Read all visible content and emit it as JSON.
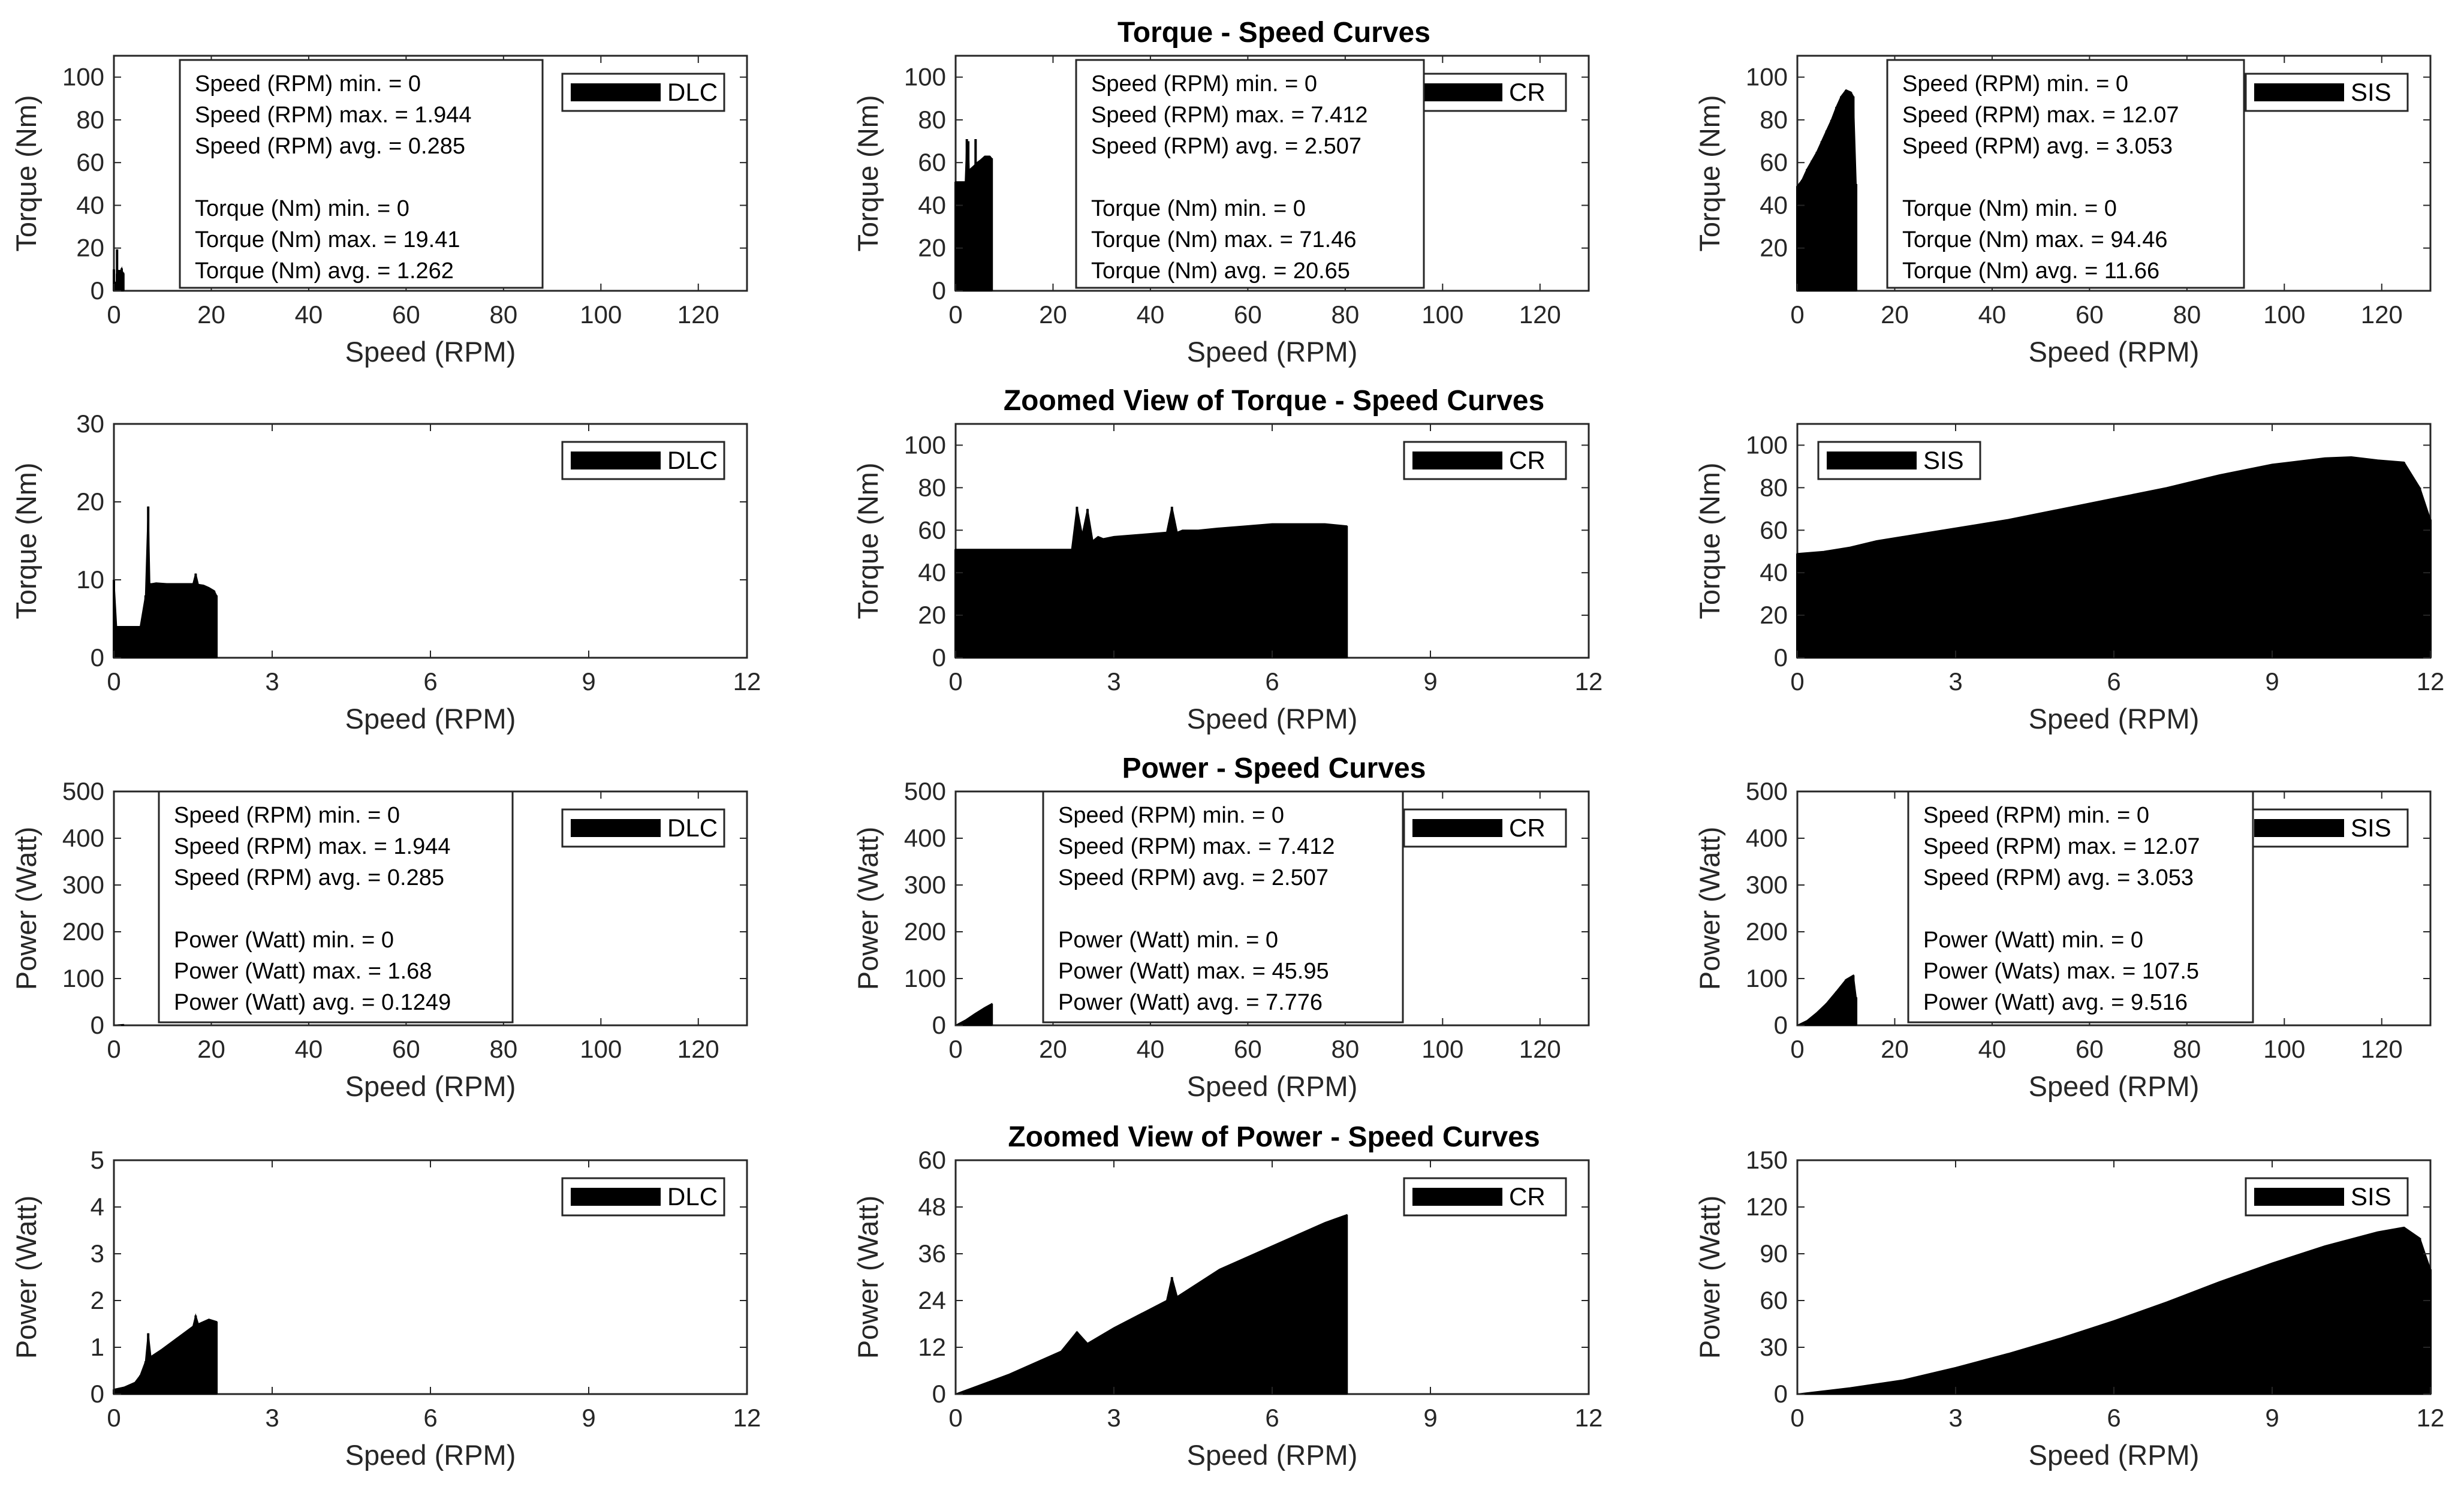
{
  "figure": {
    "titles": {
      "torque": "Torque - Speed Curves",
      "torque_zoom": "Zoomed View of Torque - Speed Curves",
      "power": "Power - Speed Curves",
      "power_zoom": "Zoomed View of Power - Speed Curves"
    },
    "colors": {
      "fill": "#000000",
      "axis": "#262626",
      "background": "#ffffff"
    }
  },
  "chart_data": [
    {
      "type": "area",
      "row": 0,
      "col": 0,
      "legend": "DLC",
      "xlabel": "Speed (RPM)",
      "ylabel": "Torque (Nm)",
      "xlim": [
        0,
        130
      ],
      "ylim": [
        0,
        110
      ],
      "xticks": [
        0,
        20,
        40,
        60,
        80,
        100,
        120
      ],
      "yticks": [
        0,
        20,
        40,
        60,
        80,
        100
      ],
      "legend_position": "top-right",
      "stats": [
        "Speed (RPM) min. = 0",
        "Speed (RPM) max. = 1.944",
        "Speed (RPM) avg. = 0.285",
        "",
        "Torque (Nm) min. = 0",
        "Torque (Nm) max. = 19.41",
        "Torque (Nm) avg. = 1.262"
      ],
      "x": [
        0,
        0.05,
        0.1,
        0.5,
        0.62,
        0.65,
        0.7,
        1.0,
        1.4,
        1.6,
        1.7,
        1.9,
        1.944
      ],
      "y": [
        10,
        4,
        4,
        4,
        8,
        19.4,
        9.5,
        9.5,
        9.5,
        10.5,
        9.0,
        8.5,
        8.0
      ]
    },
    {
      "type": "area",
      "row": 0,
      "col": 1,
      "legend": "CR",
      "xlabel": "Speed (RPM)",
      "ylabel": "Torque (Nm)",
      "xlim": [
        0,
        130
      ],
      "ylim": [
        0,
        110
      ],
      "xticks": [
        0,
        20,
        40,
        60,
        80,
        100,
        120
      ],
      "yticks": [
        0,
        20,
        40,
        60,
        80,
        100
      ],
      "legend_position": "top-right",
      "stats": [
        "Speed (RPM) min. = 0",
        "Speed (RPM) max. = 7.412",
        "Speed (RPM) avg. = 2.507",
        "",
        "Torque (Nm) min. = 0",
        "Torque (Nm) max. = 71.46",
        "Torque (Nm) avg. = 20.65"
      ],
      "x": [
        0,
        2.0,
        2.3,
        2.4,
        2.6,
        2.8,
        3.0,
        4.0,
        4.1,
        4.2,
        4.4,
        5.0,
        6.0,
        7.0,
        7.412
      ],
      "y": [
        51,
        51,
        71,
        56,
        70,
        55,
        57,
        59,
        71,
        59,
        60,
        61,
        63,
        63,
        62
      ]
    },
    {
      "type": "area",
      "row": 0,
      "col": 2,
      "legend": "SIS",
      "xlabel": "Speed (RPM)",
      "ylabel": "Torque (Nm)",
      "xlim": [
        0,
        130
      ],
      "ylim": [
        0,
        110
      ],
      "xticks": [
        0,
        20,
        40,
        60,
        80,
        100,
        120
      ],
      "yticks": [
        20,
        40,
        60,
        80,
        100
      ],
      "legend_position": "top-right",
      "stats": [
        "Speed (RPM) min. = 0",
        "Speed (RPM) max. = 12.07",
        "Speed (RPM) avg. = 3.053",
        "",
        "Torque (Nm) min. = 0",
        "Torque (Nm) max. = 94.46",
        "Torque (Nm) avg. = 11.66"
      ],
      "x": [
        0,
        1,
        2,
        3,
        4,
        5,
        6,
        7,
        8,
        9,
        10,
        11,
        11.5,
        12.07
      ],
      "y": [
        49,
        52,
        57,
        61,
        65,
        70,
        75,
        80,
        86,
        91,
        94,
        93,
        91,
        50
      ]
    },
    {
      "type": "area",
      "row": 1,
      "col": 0,
      "legend": "DLC",
      "xlabel": "Speed (RPM)",
      "ylabel": "Torque (Nm)",
      "xlim": [
        0,
        12
      ],
      "ylim": [
        0,
        30
      ],
      "xticks": [
        0,
        3,
        6,
        9,
        12
      ],
      "yticks": [
        0,
        10,
        20,
        30
      ],
      "legend_position": "top-right",
      "x": [
        0,
        0.05,
        0.1,
        0.3,
        0.5,
        0.6,
        0.65,
        0.68,
        0.72,
        0.8,
        1.0,
        1.3,
        1.5,
        1.55,
        1.6,
        1.7,
        1.8,
        1.9,
        1.944
      ],
      "y": [
        10,
        4,
        4,
        4,
        4,
        8,
        19.4,
        9.5,
        9.5,
        9.6,
        9.5,
        9.5,
        9.5,
        10.8,
        9.4,
        9.3,
        9.0,
        8.6,
        8.0
      ]
    },
    {
      "type": "area",
      "row": 1,
      "col": 1,
      "legend": "CR",
      "xlabel": "Speed (RPM)",
      "ylabel": "Torque (Nm)",
      "xlim": [
        0,
        12
      ],
      "ylim": [
        0,
        110
      ],
      "xticks": [
        0,
        3,
        6,
        9,
        12
      ],
      "yticks": [
        0,
        20,
        40,
        60,
        80,
        100
      ],
      "legend_position": "top-right",
      "x": [
        0,
        1,
        2,
        2.2,
        2.3,
        2.4,
        2.5,
        2.6,
        2.7,
        2.8,
        3.0,
        3.5,
        4.0,
        4.1,
        4.2,
        4.3,
        4.6,
        5.0,
        5.5,
        6.0,
        6.5,
        7.0,
        7.412
      ],
      "y": [
        51,
        51,
        51,
        51,
        71,
        58,
        70,
        55,
        57,
        56,
        57,
        58,
        59,
        71,
        59,
        60,
        60,
        61,
        62,
        63,
        63,
        63,
        62
      ]
    },
    {
      "type": "area",
      "row": 1,
      "col": 2,
      "legend": "SIS",
      "xlabel": "Speed (RPM)",
      "ylabel": "Torque (Nm)",
      "xlim": [
        0,
        12
      ],
      "ylim": [
        0,
        110
      ],
      "xticks": [
        0,
        3,
        6,
        9,
        12
      ],
      "yticks": [
        0,
        20,
        40,
        60,
        80,
        100
      ],
      "legend_position": "top-left",
      "x": [
        0,
        0.5,
        1,
        1.5,
        2,
        3,
        4,
        5,
        6,
        7,
        8,
        9,
        10,
        10.5,
        11,
        11.5,
        11.8,
        12
      ],
      "y": [
        49,
        50,
        52,
        55,
        57,
        61,
        65,
        70,
        75,
        80,
        86,
        91,
        94,
        94.5,
        93,
        92,
        80,
        65
      ]
    },
    {
      "type": "area",
      "row": 2,
      "col": 0,
      "legend": "DLC",
      "xlabel": "Speed (RPM)",
      "ylabel": "Power (Watt)",
      "xlim": [
        0,
        130
      ],
      "ylim": [
        0,
        500
      ],
      "xticks": [
        0,
        20,
        40,
        60,
        80,
        100,
        120
      ],
      "yticks": [
        0,
        100,
        200,
        300,
        400,
        500
      ],
      "legend_position": "top-right",
      "stats": [
        "Speed (RPM) min. = 0",
        "Speed (RPM) max. = 1.944",
        "Speed (RPM) avg. = 0.285",
        "",
        "Power (Watt) min. = 0",
        "Power (Watt) max. = 1.68",
        "Power (Watt) avg. = 0.1249"
      ],
      "x": [
        0,
        1,
        1.944
      ],
      "y": [
        0,
        1,
        1.6
      ]
    },
    {
      "type": "area",
      "row": 2,
      "col": 1,
      "legend": "CR",
      "xlabel": "Speed (RPM)",
      "ylabel": "Power (Watt)",
      "xlim": [
        0,
        130
      ],
      "ylim": [
        0,
        500
      ],
      "xticks": [
        0,
        20,
        40,
        60,
        80,
        100,
        120
      ],
      "yticks": [
        0,
        100,
        200,
        300,
        400,
        500
      ],
      "legend_position": "top-right",
      "stats": [
        "Speed (RPM) min. = 0",
        "Speed (RPM) max. = 7.412",
        "Speed (RPM) avg. = 2.507",
        "",
        "Power (Watt) min. = 0",
        "Power (Watt) max. = 45.95",
        "Power (Watt) avg. = 7.776"
      ],
      "x": [
        0,
        2,
        4,
        6,
        7.412
      ],
      "y": [
        0,
        11,
        25,
        38,
        46
      ]
    },
    {
      "type": "area",
      "row": 2,
      "col": 2,
      "legend": "SIS",
      "xlabel": "Speed (RPM)",
      "ylabel": "Power (Watt)",
      "xlim": [
        0,
        130
      ],
      "ylim": [
        0,
        500
      ],
      "xticks": [
        0,
        20,
        40,
        60,
        80,
        100,
        120
      ],
      "yticks": [
        0,
        100,
        200,
        300,
        400,
        500
      ],
      "legend_position": "top-right",
      "stats": [
        "Speed (RPM) min. = 0",
        "Speed (RPM) max. = 12.07",
        "Speed (RPM) avg. = 3.053",
        "",
        "Power (Watt) min. = 0",
        "Power (Wats) max. = 107.5",
        "Power (Watt) avg. = 9.516"
      ],
      "x": [
        0,
        2,
        4,
        6,
        8,
        10,
        11.5,
        12.07
      ],
      "y": [
        0,
        10,
        27,
        47,
        72,
        98,
        107,
        60
      ]
    },
    {
      "type": "area",
      "row": 3,
      "col": 0,
      "legend": "DLC",
      "xlabel": "Speed (RPM)",
      "ylabel": "Power (Watt)",
      "xlim": [
        0,
        12
      ],
      "ylim": [
        0,
        5
      ],
      "xticks": [
        0,
        3,
        6,
        9,
        12
      ],
      "yticks": [
        0,
        1,
        2,
        3,
        4,
        5
      ],
      "legend_position": "top-right",
      "x": [
        0,
        0.2,
        0.4,
        0.5,
        0.6,
        0.65,
        0.7,
        0.9,
        1.2,
        1.5,
        1.55,
        1.6,
        1.8,
        1.944
      ],
      "y": [
        0.1,
        0.15,
        0.25,
        0.4,
        0.7,
        1.3,
        0.8,
        0.95,
        1.2,
        1.45,
        1.68,
        1.5,
        1.6,
        1.55
      ]
    },
    {
      "type": "area",
      "row": 3,
      "col": 1,
      "legend": "CR",
      "xlabel": "Speed (RPM)",
      "ylabel": "Power (Watt)",
      "xlim": [
        0,
        12
      ],
      "ylim": [
        0,
        60
      ],
      "xticks": [
        0,
        3,
        6,
        9,
        12
      ],
      "yticks": [
        0,
        12,
        24,
        36,
        48,
        60
      ],
      "legend_position": "top-right",
      "x": [
        0,
        1,
        2,
        2.3,
        2.5,
        3,
        4,
        4.1,
        4.2,
        5,
        6,
        7,
        7.412
      ],
      "y": [
        0,
        5,
        11,
        16,
        13,
        17,
        24,
        30,
        25,
        32,
        38,
        44,
        46
      ]
    },
    {
      "type": "area",
      "row": 3,
      "col": 2,
      "legend": "SIS",
      "xlabel": "Speed (RPM)",
      "ylabel": "Power (Watt)",
      "xlim": [
        0,
        12
      ],
      "ylim": [
        0,
        150
      ],
      "xticks": [
        0,
        3,
        6,
        9,
        12
      ],
      "yticks": [
        0,
        30,
        60,
        90,
        120,
        150
      ],
      "legend_position": "top-right",
      "x": [
        0,
        1,
        2,
        3,
        4,
        5,
        6,
        7,
        8,
        9,
        10,
        11,
        11.5,
        11.8,
        12
      ],
      "y": [
        0,
        4,
        9,
        17,
        26,
        36,
        47,
        59,
        72,
        84,
        95,
        104,
        107,
        100,
        80
      ]
    }
  ]
}
